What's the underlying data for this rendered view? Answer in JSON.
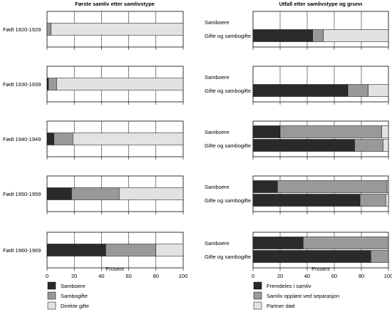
{
  "colors": {
    "dark": "#2a2a2a",
    "mid": "#999999",
    "light": "#e2e2e2",
    "stroke": "#000000",
    "grid": "#000000"
  },
  "chart_data": [
    {
      "type": "bar",
      "orientation": "horizontal",
      "stacked": true,
      "title": "Første samliv etter samlivstype",
      "xlabel": "Prosent",
      "xlim": [
        0,
        100
      ],
      "xticks": [
        "0",
        "20",
        "40",
        "60",
        "80",
        "100"
      ],
      "grid": true,
      "legend_position": "bottom",
      "panels": [
        {
          "label": "Født 1920-1929",
          "bars": [
            {
              "label": "",
              "values": [
                0,
                3,
                97
              ]
            }
          ]
        },
        {
          "label": "Født 1930-1939",
          "bars": [
            {
              "label": "",
              "values": [
                1,
                6,
                93
              ]
            }
          ]
        },
        {
          "label": "Født 1940-1949",
          "bars": [
            {
              "label": "",
              "values": [
                5,
                14,
                81
              ]
            }
          ]
        },
        {
          "label": "Født 1950-1959",
          "bars": [
            {
              "label": "",
              "values": [
                18,
                35,
                47
              ]
            }
          ]
        },
        {
          "label": "Født 1960-1969",
          "bars": [
            {
              "label": "",
              "values": [
                43,
                37,
                20
              ]
            }
          ]
        }
      ],
      "series": [
        {
          "name": "Samboere",
          "color": "#2a2a2a"
        },
        {
          "name": "Sambogifte",
          "color": "#999999"
        },
        {
          "name": "Direkte gifte",
          "color": "#e2e2e2"
        }
      ]
    },
    {
      "type": "bar",
      "orientation": "horizontal",
      "stacked": true,
      "title": "Utfall etter samlivstype og grunn",
      "xlabel": "Prosent",
      "xlim": [
        0,
        100
      ],
      "xticks": [
        "0",
        "20",
        "40",
        "60",
        "80",
        "100"
      ],
      "grid": true,
      "legend_position": "bottom",
      "panels": [
        {
          "label": "",
          "bars": [
            {
              "label": "Samboere",
              "values": null
            },
            {
              "label": "Gifte og sambogifte",
              "values": [
                44,
                8,
                48
              ]
            }
          ]
        },
        {
          "label": "",
          "bars": [
            {
              "label": "Samboere",
              "values": null
            },
            {
              "label": "Gifte og sambogifte",
              "values": [
                70,
                15,
                15
              ]
            }
          ]
        },
        {
          "label": "",
          "bars": [
            {
              "label": "Samboere",
              "values": [
                20,
                75,
                5
              ]
            },
            {
              "label": "Gifte og sambogifte",
              "values": [
                75,
                21,
                4
              ]
            }
          ]
        },
        {
          "label": "",
          "bars": [
            {
              "label": "Samboere",
              "values": [
                18,
                81,
                1
              ]
            },
            {
              "label": "Gifte og sambogifte",
              "values": [
                79,
                19,
                2
              ]
            }
          ]
        },
        {
          "label": "",
          "bars": [
            {
              "label": "Samboere",
              "values": [
                37,
                63,
                0
              ]
            },
            {
              "label": "Gifte og sambogifte",
              "values": [
                87,
                13,
                0
              ]
            }
          ]
        }
      ],
      "series": [
        {
          "name": "Fremdeles i samliv",
          "color": "#2a2a2a"
        },
        {
          "name": "Samliv oppløst ved separasjon",
          "color": "#999999"
        },
        {
          "name": "Partner død",
          "color": "#e2e2e2"
        }
      ]
    }
  ]
}
